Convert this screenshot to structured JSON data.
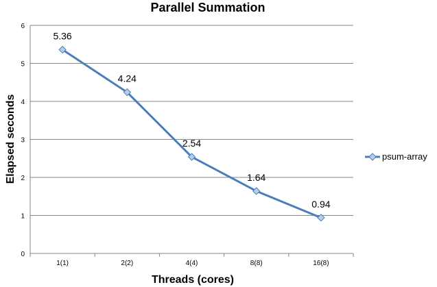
{
  "chart_data": {
    "type": "line",
    "title": "Parallel Summation",
    "xlabel": "Threads (cores)",
    "ylabel": "Elapsed seconds",
    "categories": [
      "1(1)",
      "2(2)",
      "4(4)",
      "8(8)",
      "16(8)"
    ],
    "ylim": [
      0,
      6
    ],
    "yticks": [
      0,
      1,
      2,
      3,
      4,
      5,
      6
    ],
    "grid": true,
    "legend_position": "right",
    "series": [
      {
        "name": "psum-array",
        "values": [
          5.36,
          4.24,
          2.54,
          1.64,
          0.94
        ],
        "data_labels": [
          "5.36",
          "4.24",
          "2.54",
          "1.64",
          "0.94"
        ],
        "color": "#4a7ebb",
        "marker_fill": "#b9cde5",
        "marker": "diamond"
      }
    ]
  }
}
